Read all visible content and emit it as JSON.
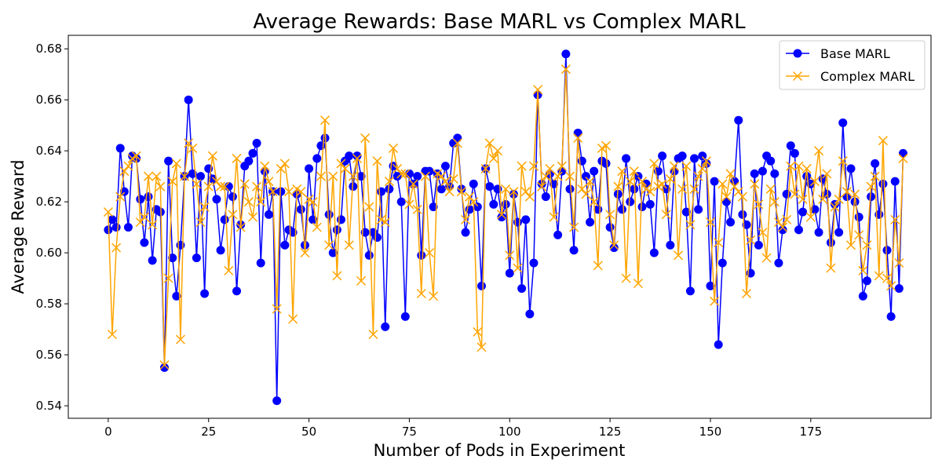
{
  "chart_data": {
    "type": "line",
    "title": "Average Rewards: Base MARL vs Complex MARL",
    "xlabel": "Number of Pods in Experiment",
    "ylabel": "Average Reward",
    "xlim": [
      -9.95,
      204.95
    ],
    "ylim": [
      0.5351,
      0.6853
    ],
    "xticks": [
      0,
      25,
      50,
      75,
      100,
      125,
      150,
      175
    ],
    "yticks": [
      0.54,
      0.56,
      0.58,
      0.6,
      0.62,
      0.64,
      0.66,
      0.68
    ],
    "ytick_labels": [
      "0.54",
      "0.56",
      "0.58",
      "0.60",
      "0.62",
      "0.64",
      "0.66",
      "0.68"
    ],
    "grid": false,
    "legend_position": "top-right",
    "series": [
      {
        "name": "Base MARL",
        "color": "#0000ff",
        "marker": "circle",
        "values": [
          0.609,
          0.613,
          0.61,
          0.641,
          0.624,
          0.61,
          0.638,
          0.637,
          0.621,
          0.604,
          0.622,
          0.597,
          0.617,
          0.616,
          0.555,
          0.636,
          0.598,
          0.583,
          0.603,
          0.63,
          0.66,
          0.631,
          0.598,
          0.63,
          0.584,
          0.633,
          0.629,
          0.621,
          0.601,
          0.613,
          0.626,
          0.622,
          0.585,
          0.611,
          0.634,
          0.636,
          0.639,
          0.643,
          0.596,
          0.632,
          0.615,
          0.624,
          0.542,
          0.624,
          0.603,
          0.609,
          0.608,
          0.623,
          0.617,
          0.603,
          0.633,
          0.613,
          0.637,
          0.642,
          0.645,
          0.615,
          0.6,
          0.609,
          0.613,
          0.636,
          0.638,
          0.626,
          0.638,
          0.63,
          0.608,
          0.599,
          0.608,
          0.606,
          0.624,
          0.571,
          0.625,
          0.634,
          0.63,
          0.62,
          0.575,
          0.631,
          0.627,
          0.63,
          0.599,
          0.632,
          0.632,
          0.618,
          0.631,
          0.625,
          0.634,
          0.626,
          0.643,
          0.645,
          0.625,
          0.608,
          0.617,
          0.627,
          0.618,
          0.587,
          0.633,
          0.626,
          0.619,
          0.625,
          0.614,
          0.619,
          0.592,
          0.623,
          0.612,
          0.586,
          0.613,
          0.576,
          0.596,
          0.662,
          0.627,
          0.622,
          0.631,
          0.627,
          0.607,
          0.632,
          0.678,
          0.625,
          0.601,
          0.647,
          0.636,
          0.63,
          0.612,
          0.632,
          0.617,
          0.636,
          0.635,
          0.61,
          0.602,
          0.623,
          0.617,
          0.637,
          0.62,
          0.625,
          0.63,
          0.618,
          0.627,
          0.619,
          0.6,
          0.632,
          0.638,
          0.625,
          0.603,
          0.632,
          0.637,
          0.638,
          0.616,
          0.585,
          0.637,
          0.617,
          0.638,
          0.635,
          0.587,
          0.628,
          0.564,
          0.596,
          0.62,
          0.612,
          0.628,
          0.652,
          0.615,
          0.611,
          0.592,
          0.631,
          0.603,
          0.632,
          0.638,
          0.636,
          0.631,
          0.596,
          0.609,
          0.623,
          0.642,
          0.639,
          0.609,
          0.616,
          0.63,
          0.627,
          0.617,
          0.608,
          0.629,
          0.623,
          0.604,
          0.619,
          0.608,
          0.651,
          0.622,
          0.633,
          0.62,
          0.614,
          0.583,
          0.589,
          0.622,
          0.635,
          0.615,
          0.627,
          0.601,
          0.575,
          0.628,
          0.586,
          0.639
        ]
      },
      {
        "name": "Complex MARL",
        "color": "#ffa500",
        "marker": "x",
        "values": [
          0.616,
          0.568,
          0.602,
          0.622,
          0.632,
          0.634,
          0.637,
          0.638,
          0.612,
          0.614,
          0.63,
          0.611,
          0.63,
          0.626,
          0.556,
          0.59,
          0.628,
          0.635,
          0.566,
          0.63,
          0.643,
          0.641,
          0.627,
          0.612,
          0.618,
          0.626,
          0.638,
          0.628,
          0.626,
          0.626,
          0.593,
          0.615,
          0.637,
          0.61,
          0.627,
          0.62,
          0.614,
          0.626,
          0.62,
          0.634,
          0.628,
          0.624,
          0.578,
          0.633,
          0.635,
          0.624,
          0.574,
          0.625,
          0.624,
          0.6,
          0.621,
          0.62,
          0.61,
          0.63,
          0.652,
          0.603,
          0.63,
          0.591,
          0.635,
          0.633,
          0.603,
          0.63,
          0.637,
          0.589,
          0.645,
          0.618,
          0.568,
          0.636,
          0.613,
          0.612,
          0.628,
          0.641,
          0.633,
          0.631,
          0.631,
          0.619,
          0.627,
          0.617,
          0.584,
          0.63,
          0.6,
          0.583,
          0.631,
          0.63,
          0.628,
          0.624,
          0.629,
          0.643,
          0.624,
          0.613,
          0.622,
          0.62,
          0.569,
          0.563,
          0.633,
          0.643,
          0.637,
          0.64,
          0.615,
          0.625,
          0.599,
          0.624,
          0.594,
          0.634,
          0.624,
          0.622,
          0.634,
          0.664,
          0.626,
          0.63,
          0.633,
          0.614,
          0.63,
          0.634,
          0.672,
          0.63,
          0.61,
          0.645,
          0.625,
          0.623,
          0.628,
          0.62,
          0.595,
          0.641,
          0.642,
          0.615,
          0.603,
          0.626,
          0.632,
          0.59,
          0.628,
          0.632,
          0.588,
          0.628,
          0.625,
          0.624,
          0.635,
          0.626,
          0.627,
          0.615,
          0.629,
          0.634,
          0.599,
          0.625,
          0.634,
          0.611,
          0.625,
          0.63,
          0.633,
          0.636,
          0.612,
          0.581,
          0.604,
          0.627,
          0.622,
          0.631,
          0.626,
          0.624,
          0.622,
          0.584,
          0.605,
          0.627,
          0.619,
          0.608,
          0.598,
          0.625,
          0.62,
          0.612,
          0.61,
          0.613,
          0.634,
          0.623,
          0.634,
          0.621,
          0.633,
          0.614,
          0.628,
          0.64,
          0.621,
          0.631,
          0.594,
          0.618,
          0.621,
          0.636,
          0.624,
          0.603,
          0.623,
          0.607,
          0.593,
          0.603,
          0.626,
          0.63,
          0.591,
          0.644,
          0.59,
          0.587,
          0.613,
          0.596,
          0.637
        ]
      }
    ]
  }
}
